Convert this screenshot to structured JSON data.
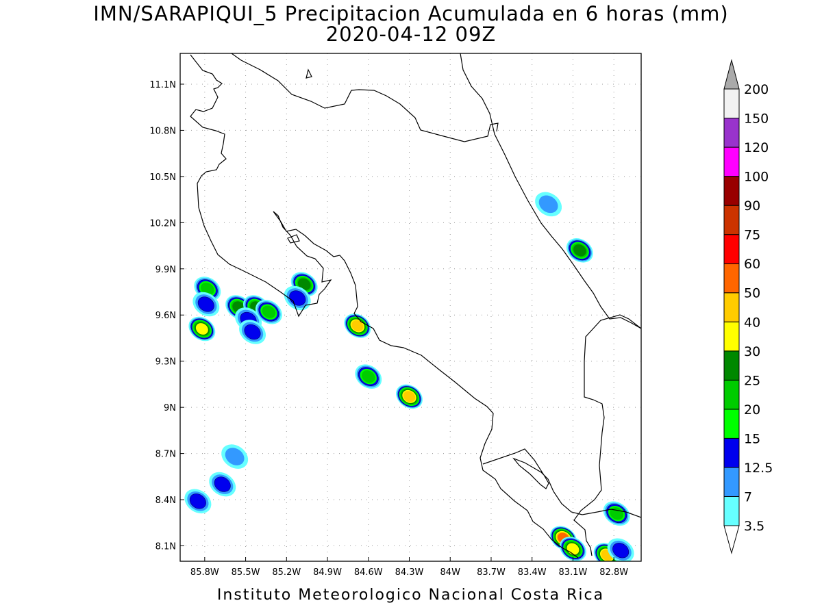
{
  "title": {
    "line1": "IMN/SARAPIQUI_5 Precipitacion Acumulada en 6 horas (mm)",
    "line2": "2020-04-12 09Z"
  },
  "footer": "Instituto Meteorologico Nacional Costa Rica",
  "map": {
    "lon_range": [
      -85.98,
      -82.6
    ],
    "lat_range": [
      8.0,
      11.3
    ],
    "lon_ticks": [
      {
        "value": -85.8,
        "label": "85.8W"
      },
      {
        "value": -85.5,
        "label": "85.5W"
      },
      {
        "value": -85.2,
        "label": "85.2W"
      },
      {
        "value": -84.9,
        "label": "84.9W"
      },
      {
        "value": -84.6,
        "label": "84.6W"
      },
      {
        "value": -84.3,
        "label": "84.3W"
      },
      {
        "value": -84.0,
        "label": "84W"
      },
      {
        "value": -83.7,
        "label": "83.7W"
      },
      {
        "value": -83.4,
        "label": "83.4W"
      },
      {
        "value": -83.1,
        "label": "83.1W"
      },
      {
        "value": -82.8,
        "label": "82.8W"
      }
    ],
    "lat_ticks": [
      {
        "value": 8.1,
        "label": "8.1N"
      },
      {
        "value": 8.4,
        "label": "8.4N"
      },
      {
        "value": 8.7,
        "label": "8.7N"
      },
      {
        "value": 9.0,
        "label": "9N"
      },
      {
        "value": 9.3,
        "label": "9.3N"
      },
      {
        "value": 9.6,
        "label": "9.6N"
      },
      {
        "value": 9.9,
        "label": "9.9N"
      },
      {
        "value": 10.2,
        "label": "10.2N"
      },
      {
        "value": 10.5,
        "label": "10.5N"
      },
      {
        "value": 10.8,
        "label": "10.8N"
      },
      {
        "value": 11.1,
        "label": "11.1N"
      }
    ],
    "grid": "dotted"
  },
  "colorbar": {
    "labels": [
      "3.5",
      "7",
      "12.5",
      "15",
      "20",
      "25",
      "30",
      "40",
      "50",
      "60",
      "75",
      "90",
      "100",
      "120",
      "150",
      "200"
    ],
    "colors": [
      "#66ffff",
      "#3399ff",
      "#0000ee",
      "#00ff00",
      "#00cc00",
      "#008800",
      "#ffff00",
      "#ffcc00",
      "#ff6600",
      "#ff0000",
      "#cc3300",
      "#990000",
      "#ff00ff",
      "#9933cc",
      "#f2f2f2",
      "#aaaaaa"
    ]
  },
  "precip_cells": [
    {
      "lon": -85.82,
      "lat": 9.51,
      "mm": 30
    },
    {
      "lon": -85.78,
      "lat": 9.77,
      "mm": 20
    },
    {
      "lon": -85.79,
      "lat": 9.67,
      "mm": 12.5
    },
    {
      "lon": -85.55,
      "lat": 9.65,
      "mm": 25
    },
    {
      "lon": -85.42,
      "lat": 9.65,
      "mm": 25
    },
    {
      "lon": -85.48,
      "lat": 9.57,
      "mm": 12.5
    },
    {
      "lon": -85.45,
      "lat": 9.49,
      "mm": 12.5
    },
    {
      "lon": -85.33,
      "lat": 9.62,
      "mm": 20
    },
    {
      "lon": -85.07,
      "lat": 9.8,
      "mm": 25
    },
    {
      "lon": -85.12,
      "lat": 9.71,
      "mm": 12.5
    },
    {
      "lon": -84.68,
      "lat": 9.53,
      "mm": 40
    },
    {
      "lon": -84.6,
      "lat": 9.2,
      "mm": 20
    },
    {
      "lon": -84.3,
      "lat": 9.07,
      "mm": 40
    },
    {
      "lon": -83.05,
      "lat": 10.02,
      "mm": 25
    },
    {
      "lon": -83.28,
      "lat": 10.32,
      "mm": 7
    },
    {
      "lon": -85.85,
      "lat": 8.39,
      "mm": 12.5
    },
    {
      "lon": -85.67,
      "lat": 8.5,
      "mm": 12.5
    },
    {
      "lon": -85.58,
      "lat": 8.68,
      "mm": 7
    },
    {
      "lon": -83.17,
      "lat": 8.15,
      "mm": 50
    },
    {
      "lon": -83.1,
      "lat": 8.08,
      "mm": 30
    },
    {
      "lon": -82.85,
      "lat": 8.04,
      "mm": 40
    },
    {
      "lon": -82.78,
      "lat": 8.31,
      "mm": 20
    },
    {
      "lon": -82.75,
      "lat": 8.07,
      "mm": 12.5
    }
  ]
}
